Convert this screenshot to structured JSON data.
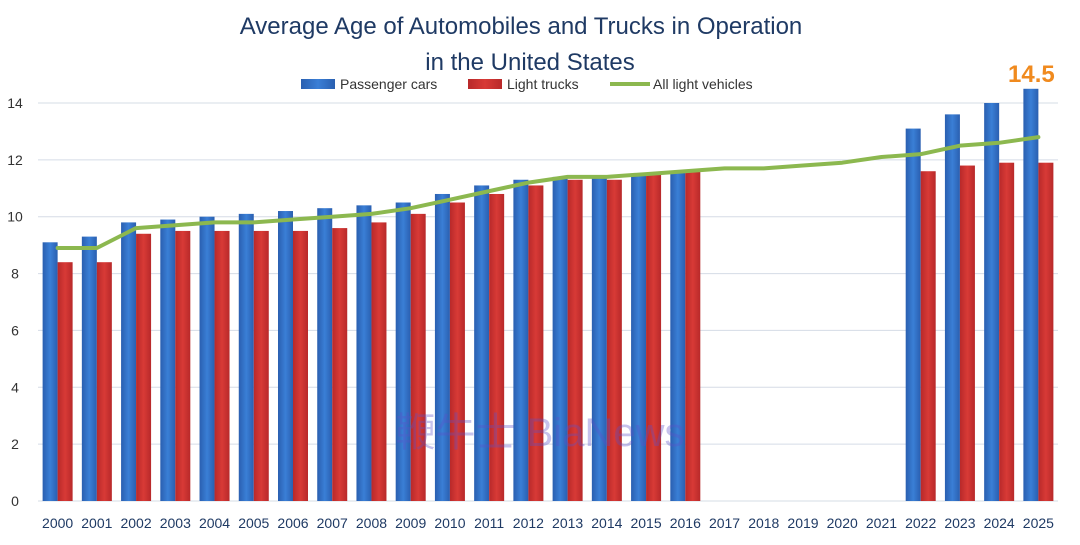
{
  "chart_data": {
    "type": "bar",
    "title_line1": "Average Age of Automobiles and Trucks in Operation",
    "title_line2": "in the United States",
    "categories": [
      "2000",
      "2001",
      "2002",
      "2003",
      "2004",
      "2005",
      "2006",
      "2007",
      "2008",
      "2009",
      "2010",
      "2011",
      "2012",
      "2013",
      "2014",
      "2015",
      "2016",
      "2017",
      "2018",
      "2019",
      "2020",
      "2021",
      "2022",
      "2023",
      "2024",
      "2025"
    ],
    "series": [
      {
        "name": "Passenger cars",
        "type": "bar",
        "color": "#2f6fc2",
        "values": [
          9.1,
          9.3,
          9.8,
          9.9,
          10.0,
          10.1,
          10.2,
          10.3,
          10.4,
          10.5,
          10.8,
          11.1,
          11.3,
          11.4,
          11.4,
          11.5,
          11.6,
          null,
          null,
          null,
          null,
          null,
          13.1,
          13.6,
          14.0,
          14.5
        ]
      },
      {
        "name": "Light trucks",
        "type": "bar",
        "color": "#c8302e",
        "values": [
          8.4,
          8.4,
          9.4,
          9.5,
          9.5,
          9.5,
          9.5,
          9.6,
          9.8,
          10.1,
          10.5,
          10.8,
          11.1,
          11.3,
          11.3,
          11.5,
          11.6,
          null,
          null,
          null,
          null,
          null,
          11.6,
          11.8,
          11.9,
          11.9
        ]
      },
      {
        "name": "All light vehicles",
        "type": "line",
        "color": "#8cb84f",
        "values": [
          8.9,
          8.9,
          9.6,
          9.7,
          9.8,
          9.8,
          9.9,
          10.0,
          10.1,
          10.3,
          10.6,
          10.9,
          11.2,
          11.4,
          11.4,
          11.5,
          11.6,
          11.7,
          11.7,
          11.8,
          11.9,
          12.1,
          12.2,
          12.5,
          12.6,
          12.8
        ]
      }
    ],
    "yticks": [
      "0",
      "2",
      "4",
      "6",
      "8",
      "10",
      "12",
      "14"
    ],
    "ylim": [
      0,
      14
    ],
    "grid": true,
    "legend_position": "top",
    "annotation": {
      "text": "14.5",
      "category": "2025",
      "color": "#f08a1e"
    },
    "watermark": "鞭牛士 BiaNews"
  }
}
